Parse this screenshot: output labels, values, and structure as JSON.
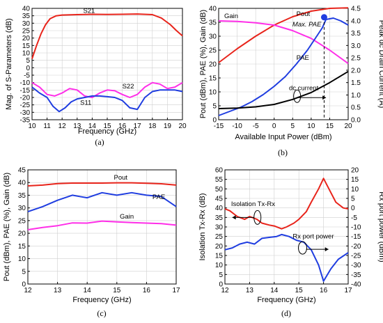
{
  "chart_data": [
    {
      "id": "a",
      "type": "line",
      "caption": "(a)",
      "xlabel": "Frequency (GHz)",
      "ylabel": "Mag. of S-Parameters (dB)",
      "xlim": [
        10,
        20
      ],
      "ylim": [
        -35,
        40
      ],
      "xticks": [
        10,
        11,
        12,
        13,
        14,
        15,
        16,
        17,
        18,
        19,
        20
      ],
      "yticks": [
        -35,
        -30,
        -25,
        -20,
        -15,
        -10,
        -5,
        0,
        5,
        10,
        15,
        20,
        25,
        30,
        35,
        40
      ],
      "grid": true,
      "series": [
        {
          "name": "S21",
          "color": "#e8241b",
          "label_at": [
            13.4,
            37
          ],
          "x": [
            10,
            10.3,
            10.6,
            10.9,
            11.2,
            11.6,
            12,
            13,
            14,
            15,
            16,
            17,
            18,
            18.6,
            19.2,
            19.6,
            20
          ],
          "y": [
            6,
            15,
            23,
            29,
            33,
            35,
            35.5,
            35.8,
            36,
            35.9,
            36,
            36.2,
            35.8,
            33.5,
            29,
            25,
            21.5
          ]
        },
        {
          "name": "S22",
          "color": "#ff2ee8",
          "label_at": [
            16,
            -14
          ],
          "x": [
            10,
            10.5,
            11,
            11.5,
            12,
            12.5,
            13,
            13.5,
            14,
            14.5,
            15,
            15.5,
            16,
            16.5,
            17,
            17.5,
            18,
            18.5,
            19,
            19.5,
            20
          ],
          "y": [
            -10,
            -13,
            -18,
            -19,
            -17,
            -14,
            -15,
            -19,
            -20,
            -17,
            -15,
            -15.5,
            -18,
            -20,
            -18,
            -13,
            -10,
            -11,
            -14,
            -13,
            -10
          ]
        },
        {
          "name": "S11",
          "color": "#1f3de0",
          "label_at": [
            13.2,
            -25
          ],
          "x": [
            10,
            10.5,
            11,
            11.4,
            11.8,
            12.2,
            12.6,
            13,
            13.5,
            14,
            14.5,
            15,
            15.5,
            16,
            16.5,
            17,
            17.5,
            18,
            18.5,
            19,
            19.5,
            20
          ],
          "y": [
            -13,
            -17,
            -20,
            -26,
            -29.5,
            -27,
            -23,
            -21,
            -20,
            -19,
            -19,
            -19.5,
            -20,
            -22,
            -27,
            -28,
            -20,
            -16,
            -15,
            -15,
            -15,
            -16
          ]
        }
      ]
    },
    {
      "id": "b",
      "type": "line",
      "caption": "(b)",
      "xlabel": "Available Input Power (dBm)",
      "ylabel": "Pout (dBm), PAE (%), Gain (dB)",
      "y2label": "Peak dc Drain Current (A)",
      "xlim": [
        -15,
        20
      ],
      "ylim": [
        0,
        40
      ],
      "y2lim": [
        0,
        4.5
      ],
      "xticks": [
        -15,
        -10,
        -5,
        0,
        5,
        10,
        15,
        20
      ],
      "yticks": [
        0,
        5,
        10,
        15,
        20,
        25,
        30,
        35,
        40
      ],
      "y2ticks": [
        "0.0",
        "0.5",
        "1.0",
        "1.5",
        "2.0",
        "2.5",
        "3.0",
        "3.5",
        "4.0",
        "4.5"
      ],
      "grid": true,
      "series": [
        {
          "name": "Pout",
          "color": "#e8241b",
          "axis": "left",
          "label_at": [
            6,
            37.3
          ],
          "x": [
            -15,
            -10,
            -5,
            0,
            5,
            10,
            15,
            20
          ],
          "y": [
            20.5,
            25.5,
            30,
            34,
            37,
            39,
            40,
            40.2
          ]
        },
        {
          "name": "Gain",
          "color": "#ff2ee8",
          "axis": "left",
          "label_at": [
            -13.5,
            36.5
          ],
          "x": [
            -15,
            -10,
            -5,
            0,
            5,
            10,
            15,
            20
          ],
          "y": [
            35.5,
            35.3,
            34.8,
            34,
            32,
            29.2,
            25,
            20.2
          ]
        },
        {
          "name": "PAE",
          "color": "#1f3de0",
          "axis": "left",
          "label_at": [
            6,
            21.5
          ],
          "x": [
            -15,
            -12,
            -9,
            -6,
            -3,
            0,
            3,
            6,
            9,
            11,
            13,
            14,
            16,
            18,
            20
          ],
          "y": [
            1.5,
            3,
            4.5,
            6.5,
            9,
            12,
            15.5,
            20,
            25,
            29,
            33,
            36,
            36.5,
            35.5,
            34
          ]
        },
        {
          "name": "dc current",
          "color": "#000000",
          "axis": "right",
          "label_at": [
            4,
            1.2
          ],
          "x": [
            -15,
            -10,
            -5,
            0,
            5,
            10,
            15,
            20
          ],
          "y": [
            0.45,
            0.47,
            0.52,
            0.62,
            0.82,
            1.1,
            1.5,
            1.95
          ]
        }
      ],
      "marker": {
        "label": "Max. PAE",
        "x": 13.5,
        "y": 36.8
      }
    },
    {
      "id": "c",
      "type": "line",
      "caption": "(c)",
      "xlabel": "Frequency (GHz)",
      "ylabel": "Pout (dBm), PAE (%), Gain (dB)",
      "xlim": [
        12,
        17
      ],
      "ylim": [
        0,
        45
      ],
      "xticks": [
        12,
        13,
        14,
        15,
        16,
        17
      ],
      "yticks": [
        0,
        5,
        10,
        15,
        20,
        25,
        30,
        35,
        40,
        45
      ],
      "grid": true,
      "series": [
        {
          "name": "Pout",
          "color": "#e8241b",
          "label_at": [
            14.9,
            41.2
          ],
          "x": [
            12,
            12.5,
            13,
            13.5,
            14,
            14.5,
            15,
            15.5,
            16,
            16.5,
            17
          ],
          "y": [
            38.7,
            39,
            39.6,
            39.8,
            39.8,
            39.8,
            39.9,
            39.9,
            39.7,
            39.5,
            39
          ]
        },
        {
          "name": "PAE",
          "color": "#1f3de0",
          "label_at": [
            16.2,
            33.5
          ],
          "x": [
            12,
            12.5,
            13,
            13.5,
            13.75,
            14,
            14.5,
            15,
            15.5,
            16,
            16.5,
            17
          ],
          "y": [
            28.5,
            30.5,
            33,
            35,
            34.5,
            34,
            36,
            35,
            36,
            35,
            34.5,
            30.5
          ]
        },
        {
          "name": "Gain",
          "color": "#ff2ee8",
          "label_at": [
            15.1,
            25.8
          ],
          "x": [
            12,
            12.5,
            13,
            13.5,
            14,
            14.5,
            15,
            15.5,
            16,
            16.5,
            17
          ],
          "y": [
            21.4,
            22.3,
            23,
            24.1,
            24,
            24.8,
            24.5,
            24.2,
            24,
            23.8,
            23.2
          ]
        }
      ]
    },
    {
      "id": "d",
      "type": "line",
      "caption": "(d)",
      "xlabel": "Frequency (GHz)",
      "ylabel": "Isolation Tx-Rx (dB)",
      "y2label": "Rx port power (dBm)",
      "xlim": [
        12,
        17
      ],
      "ylim": [
        0,
        60
      ],
      "y2lim": [
        -40,
        20
      ],
      "xticks": [
        12,
        13,
        14,
        15,
        16,
        17
      ],
      "yticks": [
        0,
        5,
        10,
        15,
        20,
        25,
        30,
        35,
        40,
        45,
        50,
        55,
        60
      ],
      "y2ticks": [
        -40,
        -35,
        -30,
        -25,
        -20,
        -15,
        -10,
        -5,
        0,
        5,
        10,
        15,
        20
      ],
      "grid": true,
      "series": [
        {
          "name": "Isolation Tx-Rx",
          "color": "#e8241b",
          "axis": "left",
          "label_at": [
            12.25,
            41
          ],
          "x": [
            12,
            12.2,
            12.5,
            12.8,
            13,
            13.3,
            13.5,
            13.8,
            14,
            14.3,
            14.5,
            14.8,
            15,
            15.3,
            15.5,
            15.8,
            16,
            16.3,
            16.5,
            16.8,
            17
          ],
          "y": [
            39.5,
            38.5,
            35.5,
            34,
            35.5,
            34,
            32,
            31,
            30.5,
            29,
            30,
            32,
            34,
            38,
            43,
            50,
            55.5,
            48,
            43,
            40,
            39.5
          ]
        },
        {
          "name": "Rx port power",
          "color": "#1f3de0",
          "axis": "right",
          "label_at": [
            14.75,
            -16
          ],
          "x": [
            12,
            12.3,
            12.6,
            12.9,
            13.2,
            13.5,
            13.8,
            14.1,
            14.3,
            14.6,
            14.9,
            15.2,
            15.5,
            15.8,
            16,
            16.3,
            16.6,
            17
          ],
          "y": [
            -22,
            -21,
            -19,
            -18,
            -19,
            -16,
            -15.5,
            -15,
            -14,
            -15,
            -17,
            -18,
            -22,
            -30,
            -38.5,
            -32,
            -27,
            -23.5
          ]
        }
      ]
    }
  ]
}
